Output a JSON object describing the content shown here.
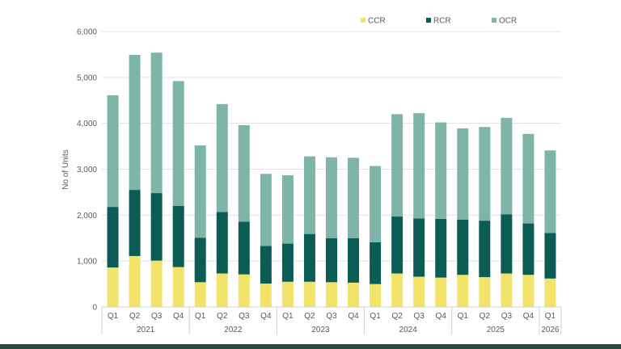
{
  "chart_data": {
    "type": "bar",
    "stacked": true,
    "title": "",
    "xlabel": "",
    "ylabel": "No of Units",
    "ylim": [
      0,
      6000
    ],
    "yticks": [
      0,
      1000,
      2000,
      3000,
      4000,
      5000,
      6000
    ],
    "ytick_labels": [
      "0",
      "1,000",
      "2,000",
      "3,000",
      "4,000",
      "5,000",
      "6,000"
    ],
    "grid": true,
    "legend_position": "top",
    "categories": [
      "Q1",
      "Q2",
      "Q3",
      "Q4",
      "Q1",
      "Q2",
      "Q3",
      "Q4",
      "Q1",
      "Q2",
      "Q3",
      "Q4",
      "Q1",
      "Q2",
      "Q3",
      "Q4",
      "Q1",
      "Q2",
      "Q3",
      "Q4",
      "Q1"
    ],
    "groups": [
      {
        "label": "2021",
        "count": 4
      },
      {
        "label": "2022",
        "count": 4
      },
      {
        "label": "2023",
        "count": 4
      },
      {
        "label": "2024",
        "count": 4
      },
      {
        "label": "2025",
        "count": 4
      },
      {
        "label": "2026",
        "count": 1
      }
    ],
    "series": [
      {
        "name": "CCR",
        "color": "#f2e46b",
        "values": [
          860,
          1110,
          1010,
          870,
          540,
          730,
          710,
          510,
          550,
          550,
          540,
          530,
          500,
          730,
          660,
          640,
          700,
          650,
          730,
          700,
          620
        ]
      },
      {
        "name": "RCR",
        "color": "#0b5c55",
        "values": [
          1320,
          1440,
          1470,
          1330,
          970,
          1340,
          1150,
          820,
          830,
          1040,
          960,
          970,
          910,
          1240,
          1270,
          1280,
          1200,
          1230,
          1290,
          1120,
          990
        ]
      },
      {
        "name": "OCR",
        "color": "#7fb5a9",
        "values": [
          2430,
          2940,
          3060,
          2720,
          2010,
          2350,
          2100,
          1570,
          1490,
          1690,
          1760,
          1750,
          1660,
          2230,
          2290,
          2100,
          1990,
          2040,
          2100,
          1950,
          1800
        ]
      }
    ]
  }
}
